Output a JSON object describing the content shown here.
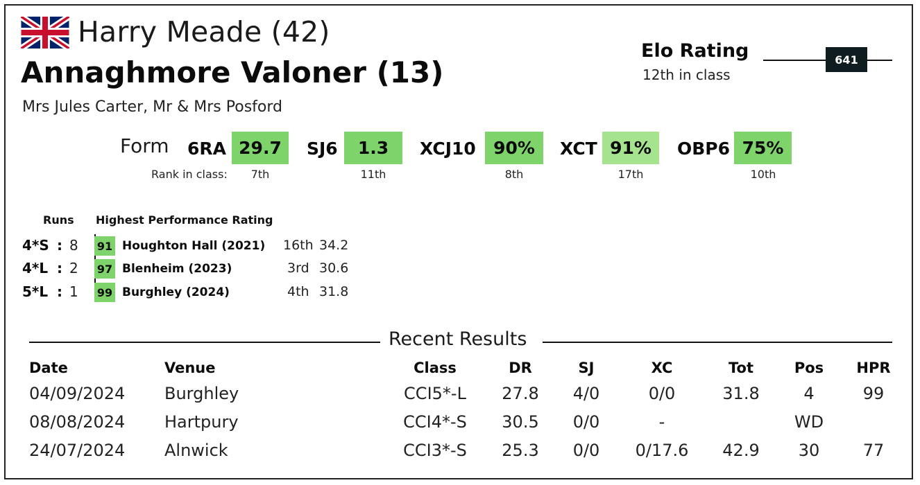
{
  "header": {
    "flag_icon": "union-jack-flag-icon",
    "rider": "Harry Meade (42)",
    "horse": "Annaghmore Valoner (13)",
    "owners": "Mrs Jules Carter, Mr & Mrs Posford"
  },
  "elo": {
    "title": "Elo Rating",
    "rank": "12th in class",
    "value": "641"
  },
  "form": {
    "label": "Form",
    "rank_label": "Rank in class:",
    "items": [
      {
        "label": "6RA",
        "value": "29.7",
        "rank": "7th"
      },
      {
        "label": "SJ6",
        "value": "1.3",
        "rank": "11th"
      },
      {
        "label": "XCJ10",
        "value": "90%",
        "rank": "8th"
      },
      {
        "label": "XCT",
        "value": "91%",
        "rank": "17th"
      },
      {
        "label": "OBP6",
        "value": "75%",
        "rank": "10th"
      }
    ]
  },
  "runs": {
    "runs_header": "Runs",
    "hpr_header": "Highest Performance Rating",
    "rows": [
      {
        "cls": "4*S",
        "sep": ":",
        "count": "8",
        "hpr": "91",
        "event": "Houghton Hall  (2021)",
        "pos": "16th",
        "score": "34.2"
      },
      {
        "cls": "4*L",
        "sep": ":",
        "count": "2",
        "hpr": "97",
        "event": "Blenheim  (2023)",
        "pos": "3rd",
        "score": "30.6"
      },
      {
        "cls": "5*L",
        "sep": ":",
        "count": "1",
        "hpr": "99",
        "event": "Burghley  (2024)",
        "pos": "4th",
        "score": "31.8"
      }
    ]
  },
  "recent": {
    "title": "Recent Results",
    "headers": {
      "date": "Date",
      "venue": "Venue",
      "class": "Class",
      "dr": "DR",
      "sj": "SJ",
      "xc": "XC",
      "tot": "Tot",
      "pos": "Pos",
      "hpr": "HPR"
    },
    "rows": [
      {
        "date": "04/09/2024",
        "venue": "Burghley",
        "class": "CCI5*-L",
        "dr": "27.8",
        "sj": "4/0",
        "xc": "0/0",
        "tot": "31.8",
        "pos": "4",
        "hpr": "99"
      },
      {
        "date": "08/08/2024",
        "venue": "Hartpury",
        "class": "CCI4*-S",
        "dr": "30.5",
        "sj": "0/0",
        "xc": "-",
        "tot": "",
        "pos": "WD",
        "hpr": ""
      },
      {
        "date": "24/07/2024",
        "venue": "Alnwick",
        "class": "CCI3*-S",
        "dr": "25.3",
        "sj": "0/0",
        "xc": "0/17.6",
        "tot": "42.9",
        "pos": "30",
        "hpr": "77"
      }
    ]
  }
}
